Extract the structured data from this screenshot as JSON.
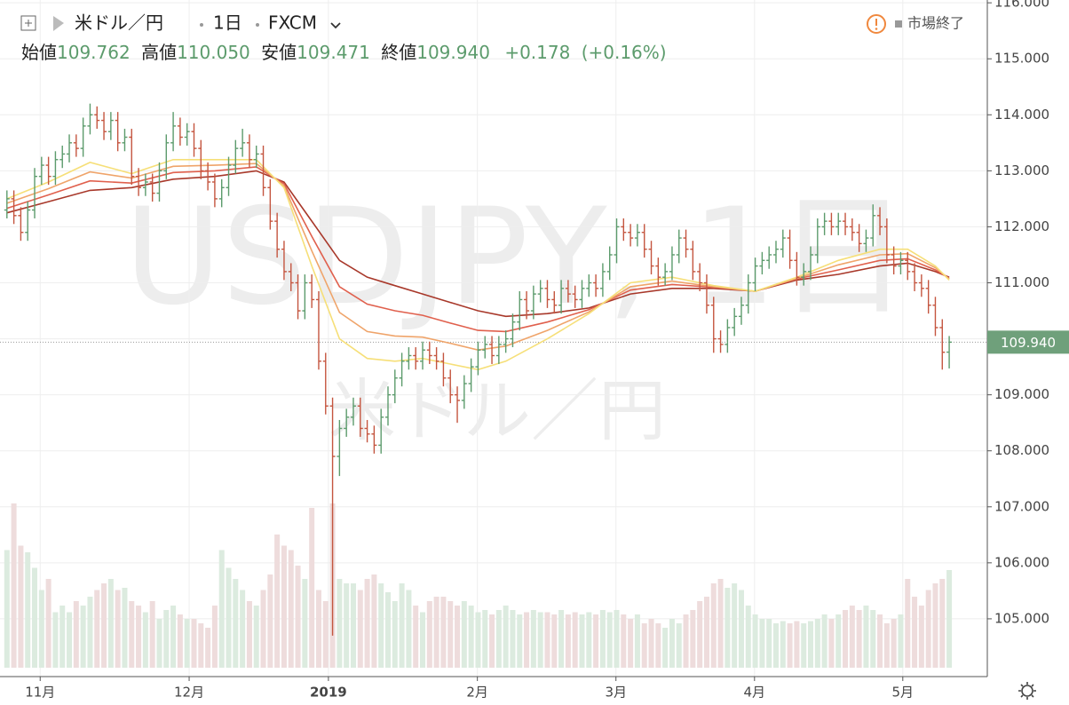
{
  "header": {
    "symbol": "米ドル／円",
    "interval": "1日",
    "source": "FXCM",
    "ohlc": [
      {
        "label": "始値",
        "value": "109.762"
      },
      {
        "label": "高値",
        "value": "110.050"
      },
      {
        "label": "安値",
        "value": "109.471"
      },
      {
        "label": "終値",
        "value": "109.940"
      }
    ],
    "change": "+0.178",
    "change_pct": "(+0.16%)",
    "status": "市場終了"
  },
  "watermark": {
    "main": "USDJPY, 1日",
    "sub": "米ドル／円"
  },
  "chart_data": {
    "type": "ohlc",
    "up_color": "#5c9b6c",
    "down_color": "#c4553f",
    "volume_up_color": "#dcebdf",
    "volume_down_color": "#eedcdc",
    "grid": true,
    "xlim": [
      -1,
      141.5
    ],
    "xticks": [
      {
        "value": 4.8,
        "label": "11月"
      },
      {
        "value": 26.3,
        "label": "12月"
      },
      {
        "value": 46.4,
        "label": "2019"
      },
      {
        "value": 67.9,
        "label": "2月"
      },
      {
        "value": 87.9,
        "label": "3月"
      },
      {
        "value": 107.9,
        "label": "4月"
      },
      {
        "value": 129.3,
        "label": "5月"
      }
    ],
    "ylim": [
      104.0,
      116.05
    ],
    "yticks": [
      {
        "value": 105,
        "label": "105.000"
      },
      {
        "value": 106,
        "label": "106.000"
      },
      {
        "value": 107,
        "label": "107.000"
      },
      {
        "value": 108,
        "label": "108.000"
      },
      {
        "value": 109,
        "label": "109.000"
      },
      {
        "value": 110,
        "label": "110.000"
      },
      {
        "value": 111,
        "label": "111.000"
      },
      {
        "value": 112,
        "label": "112.000"
      },
      {
        "value": 113,
        "label": "113.000"
      },
      {
        "value": 114,
        "label": "114.000"
      },
      {
        "value": 115,
        "label": "115.000"
      },
      {
        "value": 116,
        "label": "116.000"
      }
    ],
    "last_price": {
      "value": 109.94,
      "label": "109.940"
    },
    "open": [
      112.3,
      112.5,
      112.2,
      111.9,
      112.3,
      112.9,
      113.1,
      112.9,
      113.2,
      113.3,
      113.5,
      113.4,
      113.8,
      114.0,
      113.9,
      113.7,
      113.9,
      113.5,
      113.6,
      112.9,
      112.7,
      112.8,
      112.6,
      113.0,
      113.5,
      113.8,
      113.6,
      113.7,
      113.4,
      113.0,
      112.8,
      112.5,
      112.7,
      113.1,
      113.4,
      113.5,
      113.2,
      113.3,
      112.7,
      112.1,
      111.6,
      111.2,
      111.0,
      110.5,
      111.0,
      110.7,
      109.6,
      108.8,
      107.9,
      108.4,
      108.6,
      108.8,
      108.4,
      108.3,
      108.1,
      108.6,
      109.0,
      109.3,
      109.6,
      109.7,
      109.6,
      109.8,
      109.7,
      109.6,
      109.3,
      109.0,
      108.9,
      109.2,
      109.5,
      109.8,
      109.9,
      109.7,
      109.9,
      110.0,
      110.3,
      110.7,
      110.5,
      110.8,
      110.9,
      110.7,
      110.6,
      110.9,
      110.8,
      110.7,
      110.9,
      111.0,
      110.9,
      111.2,
      111.5,
      112.0,
      111.9,
      111.8,
      111.9,
      111.6,
      111.3,
      111.1,
      111.2,
      111.5,
      111.8,
      111.6,
      111.2,
      111.0,
      110.6,
      110.0,
      109.9,
      110.2,
      110.4,
      110.6,
      111.0,
      111.3,
      111.4,
      111.5,
      111.6,
      111.8,
      111.4,
      111.1,
      111.2,
      111.5,
      112.0,
      112.1,
      112.0,
      112.1,
      112.0,
      111.9,
      111.7,
      111.8,
      112.2,
      112.0,
      111.5,
      111.3,
      111.4,
      111.2,
      111.0,
      110.9,
      110.6,
      110.2,
      109.762
    ],
    "high": [
      112.65,
      112.65,
      112.35,
      112.45,
      113.05,
      113.25,
      113.25,
      113.35,
      113.45,
      113.65,
      113.65,
      113.95,
      114.2,
      114.15,
      114.05,
      114.05,
      114.05,
      113.75,
      113.75,
      113.05,
      112.95,
      112.95,
      113.15,
      113.65,
      114.05,
      113.95,
      113.85,
      113.85,
      113.55,
      113.15,
      112.95,
      112.85,
      113.25,
      113.55,
      113.75,
      113.65,
      113.45,
      113.45,
      112.85,
      112.25,
      111.75,
      111.35,
      111.15,
      111.15,
      111.15,
      110.85,
      109.75,
      108.95,
      108.55,
      108.75,
      108.95,
      108.95,
      108.55,
      108.45,
      108.75,
      109.15,
      109.45,
      109.75,
      109.85,
      109.85,
      109.95,
      109.95,
      109.85,
      109.75,
      109.45,
      109.15,
      109.35,
      109.65,
      109.95,
      110.05,
      110.05,
      110.05,
      110.15,
      110.45,
      110.85,
      110.85,
      110.95,
      111.05,
      111.05,
      110.85,
      111.05,
      111.05,
      110.95,
      111.05,
      111.15,
      111.15,
      111.35,
      111.65,
      112.15,
      112.15,
      112.05,
      112.05,
      112.05,
      111.75,
      111.45,
      111.35,
      111.65,
      111.95,
      111.95,
      111.75,
      111.35,
      111.15,
      110.75,
      110.15,
      110.35,
      110.55,
      110.75,
      111.15,
      111.45,
      111.55,
      111.65,
      111.75,
      111.95,
      111.95,
      111.55,
      111.35,
      111.65,
      112.15,
      112.25,
      112.25,
      112.25,
      112.25,
      112.15,
      112.05,
      111.95,
      112.4,
      112.35,
      112.15,
      111.65,
      111.55,
      111.55,
      111.35,
      111.15,
      111.05,
      110.75,
      110.35,
      110.05
    ],
    "low": [
      112.15,
      112.05,
      111.75,
      111.75,
      112.15,
      112.75,
      112.75,
      112.75,
      113.05,
      113.15,
      113.25,
      113.25,
      113.65,
      113.75,
      113.55,
      113.55,
      113.35,
      113.35,
      112.75,
      112.55,
      112.55,
      112.45,
      112.45,
      112.85,
      113.35,
      113.45,
      113.45,
      113.25,
      112.85,
      112.65,
      112.35,
      112.35,
      112.55,
      112.95,
      113.25,
      113.05,
      113.05,
      112.55,
      111.95,
      111.45,
      111.05,
      110.85,
      110.35,
      110.35,
      110.55,
      109.45,
      108.65,
      104.7,
      107.55,
      108.25,
      108.45,
      108.25,
      108.15,
      107.95,
      107.95,
      108.45,
      108.85,
      109.15,
      109.45,
      109.45,
      109.45,
      109.55,
      109.45,
      109.15,
      108.85,
      108.5,
      108.75,
      109.05,
      109.35,
      109.65,
      109.55,
      109.55,
      109.75,
      109.85,
      110.15,
      110.35,
      110.35,
      110.65,
      110.55,
      110.45,
      110.45,
      110.65,
      110.55,
      110.55,
      110.75,
      110.75,
      110.75,
      111.05,
      111.35,
      111.75,
      111.65,
      111.65,
      111.45,
      111.15,
      110.95,
      110.95,
      111.05,
      111.35,
      111.45,
      111.05,
      110.85,
      110.45,
      109.75,
      109.75,
      109.75,
      110.05,
      110.25,
      110.45,
      110.85,
      111.15,
      111.25,
      111.35,
      111.45,
      111.25,
      110.95,
      110.95,
      111.05,
      111.35,
      111.85,
      111.85,
      111.85,
      111.85,
      111.75,
      111.55,
      111.55,
      111.65,
      111.85,
      111.35,
      111.15,
      111.15,
      111.05,
      110.85,
      110.75,
      110.45,
      110.05,
      109.45,
      109.471
    ],
    "close": [
      112.5,
      112.2,
      111.9,
      112.3,
      112.9,
      113.1,
      112.9,
      113.2,
      113.3,
      113.5,
      113.4,
      113.8,
      114.0,
      113.9,
      113.7,
      113.9,
      113.5,
      113.6,
      112.9,
      112.7,
      112.8,
      112.6,
      113.0,
      113.5,
      113.8,
      113.6,
      113.7,
      113.4,
      113.0,
      112.8,
      112.5,
      112.7,
      113.1,
      113.4,
      113.5,
      113.2,
      113.3,
      112.7,
      112.1,
      111.6,
      111.2,
      111.0,
      110.5,
      111.0,
      110.7,
      109.6,
      108.8,
      107.9,
      108.4,
      108.6,
      108.8,
      108.4,
      108.3,
      108.1,
      108.6,
      109.0,
      109.3,
      109.6,
      109.7,
      109.6,
      109.8,
      109.7,
      109.6,
      109.3,
      109.0,
      108.9,
      109.2,
      109.5,
      109.8,
      109.9,
      109.7,
      109.9,
      110.0,
      110.3,
      110.7,
      110.5,
      110.8,
      110.9,
      110.7,
      110.6,
      110.9,
      110.8,
      110.7,
      110.9,
      111.0,
      110.9,
      111.2,
      111.5,
      112.0,
      111.9,
      111.8,
      111.9,
      111.6,
      111.3,
      111.1,
      111.2,
      111.5,
      111.8,
      111.6,
      111.2,
      111.0,
      110.6,
      110.0,
      109.9,
      110.2,
      110.4,
      110.6,
      111.0,
      111.3,
      111.4,
      111.5,
      111.6,
      111.8,
      111.4,
      111.1,
      111.2,
      111.5,
      112.0,
      112.1,
      112.0,
      112.1,
      112.0,
      111.9,
      111.7,
      111.8,
      112.2,
      112.0,
      111.5,
      111.3,
      111.4,
      111.2,
      111.0,
      110.9,
      110.6,
      110.2,
      109.76,
      109.94
    ],
    "volume_lim": [
      0,
      100
    ],
    "volume": [
      53,
      74,
      55,
      52,
      45,
      35,
      40,
      25,
      28,
      25,
      30,
      28,
      32,
      35,
      38,
      40,
      35,
      36,
      30,
      28,
      25,
      30,
      22,
      26,
      28,
      24,
      22,
      22,
      20,
      18,
      28,
      53,
      45,
      40,
      35,
      30,
      28,
      35,
      42,
      60,
      55,
      53,
      46,
      40,
      72,
      35,
      30,
      74,
      40,
      38,
      38,
      35,
      40,
      42,
      38,
      34,
      30,
      38,
      35,
      28,
      25,
      30,
      32,
      32,
      30,
      28,
      30,
      28,
      25,
      26,
      24,
      26,
      28,
      26,
      24,
      25,
      26,
      25,
      25,
      24,
      26,
      24,
      25,
      24,
      25,
      24,
      26,
      25,
      26,
      24,
      22,
      24,
      20,
      22,
      20,
      18,
      22,
      20,
      24,
      26,
      30,
      32,
      38,
      40,
      36,
      38,
      35,
      28,
      24,
      22,
      22,
      20,
      21,
      20,
      21,
      20,
      21,
      22,
      24,
      22,
      24,
      26,
      28,
      26,
      28,
      26,
      24,
      20,
      22,
      24,
      40,
      32,
      28,
      35,
      38,
      40,
      44
    ],
    "ribbon": {
      "x": [
        0,
        6,
        12,
        18,
        24,
        30,
        36,
        40,
        44,
        48,
        52,
        56,
        60,
        64,
        68,
        72,
        78,
        84,
        90,
        96,
        102,
        108,
        114,
        120,
        126,
        130,
        134,
        136
      ],
      "series": [
        {
          "color": "#a8382a",
          "values": [
            112.25,
            112.45,
            112.65,
            112.7,
            112.85,
            112.9,
            113.0,
            112.8,
            112.1,
            111.4,
            111.1,
            110.95,
            110.8,
            110.65,
            110.5,
            110.4,
            110.45,
            110.55,
            110.8,
            110.9,
            110.9,
            110.85,
            111.05,
            111.15,
            111.3,
            111.35,
            111.2,
            111.1
          ]
        },
        {
          "color": "#e0604d",
          "values": [
            112.33,
            112.57,
            112.82,
            112.78,
            112.97,
            113.0,
            113.07,
            112.77,
            111.83,
            110.93,
            110.62,
            110.5,
            110.42,
            110.28,
            110.15,
            110.13,
            110.3,
            110.52,
            110.87,
            110.97,
            110.92,
            110.85,
            111.07,
            111.23,
            111.4,
            111.43,
            111.23,
            111.08
          ]
        },
        {
          "color": "#efa46a",
          "values": [
            112.42,
            112.68,
            112.98,
            112.87,
            113.08,
            113.1,
            113.13,
            112.73,
            111.57,
            110.47,
            110.13,
            110.05,
            110.03,
            109.92,
            109.8,
            109.87,
            110.15,
            110.48,
            110.93,
            111.03,
            110.93,
            110.85,
            111.08,
            111.32,
            111.5,
            111.52,
            111.27,
            111.07
          ]
        },
        {
          "color": "#f6df78",
          "values": [
            112.5,
            112.8,
            113.15,
            112.95,
            113.2,
            113.2,
            113.2,
            112.7,
            111.3,
            110.0,
            109.65,
            109.6,
            109.65,
            109.55,
            109.45,
            109.6,
            110.0,
            110.45,
            111.0,
            111.1,
            110.95,
            110.85,
            111.1,
            111.4,
            111.6,
            111.6,
            111.3,
            111.05
          ]
        }
      ]
    }
  }
}
